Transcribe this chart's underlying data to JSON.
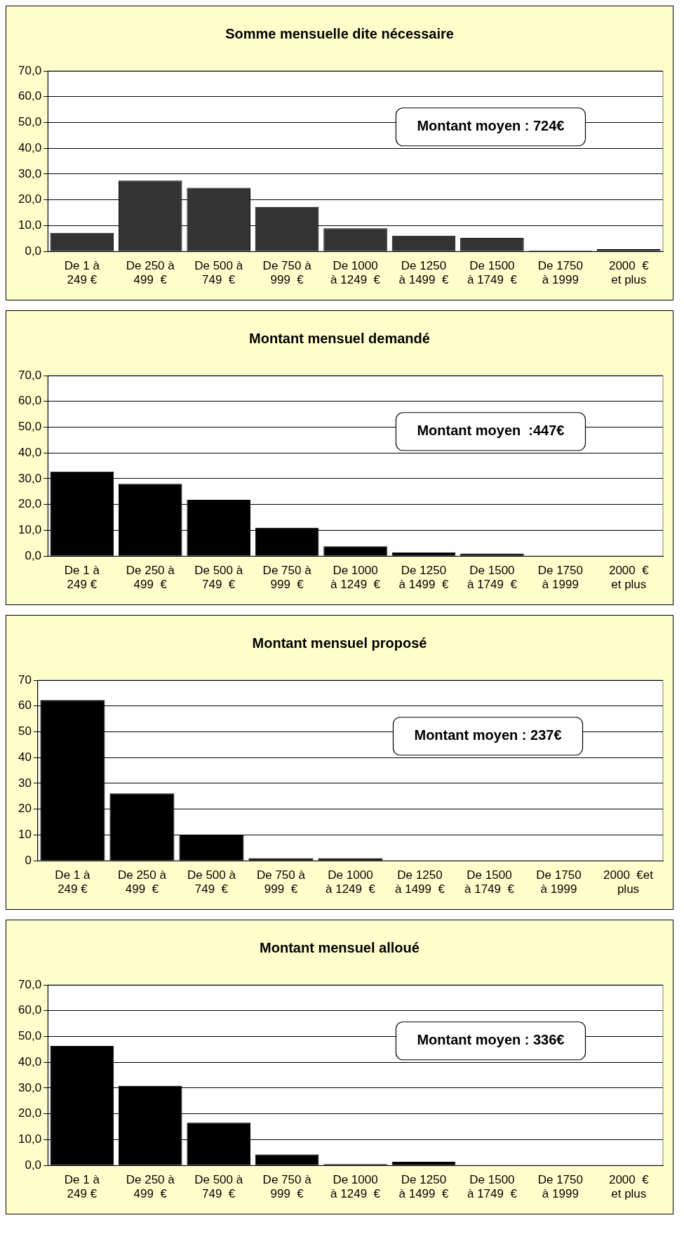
{
  "chart_data": [
    {
      "type": "bar",
      "title": "Somme mensuelle dite nécessaire",
      "categories": [
        "De 1 à\n249 €",
        "De 250 à\n499  €",
        "De 500 à\n749  €",
        "De 750 à\n999  €",
        "De 1000\nà 1249  €",
        "De 1250\nà 1499  €",
        "De 1500\nà 1749  €",
        "De 1750\nà 1999",
        "2000  €\net plus"
      ],
      "values": [
        7.2,
        27.5,
        24.7,
        17.3,
        9.0,
        6.1,
        5.2,
        0.4,
        0.9
      ],
      "color": "#333333",
      "ylim": [
        0,
        70
      ],
      "yticks": [
        {
          "value": 0,
          "label": "0,0"
        },
        {
          "value": 10,
          "label": "10,0"
        },
        {
          "value": 20,
          "label": "20,0"
        },
        {
          "value": 30,
          "label": "30,0"
        },
        {
          "value": 40,
          "label": "40,0"
        },
        {
          "value": 50,
          "label": "50,0"
        },
        {
          "value": 60,
          "label": "60,0"
        },
        {
          "value": 70,
          "label": "70,0"
        }
      ],
      "grid": "y",
      "annotations": [
        "Montant moyen : 724€"
      ]
    },
    {
      "type": "bar",
      "title": "Montant mensuel demandé",
      "categories": [
        "De 1 à\n249 €",
        "De 250 à\n499  €",
        "De 500 à\n749  €",
        "De 750 à\n999  €",
        "De 1000\nà 1249  €",
        "De 1250\nà 1499  €",
        "De 1500\nà 1749  €",
        "De 1750\nà 1999",
        "2000  €\net plus"
      ],
      "values": [
        32.8,
        28.0,
        21.8,
        11.0,
        3.8,
        1.5,
        1.0,
        0,
        0
      ],
      "color": "#000000",
      "ylim": [
        0,
        70
      ],
      "yticks": [
        {
          "value": 0,
          "label": "0,0"
        },
        {
          "value": 10,
          "label": "10,0"
        },
        {
          "value": 20,
          "label": "20,0"
        },
        {
          "value": 30,
          "label": "30,0"
        },
        {
          "value": 40,
          "label": "40,0"
        },
        {
          "value": 50,
          "label": "50,0"
        },
        {
          "value": 60,
          "label": "60,0"
        },
        {
          "value": 70,
          "label": "70,0"
        }
      ],
      "grid": "y",
      "annotations": [
        "Montant moyen  :447€"
      ]
    },
    {
      "type": "bar",
      "title": "Montant mensuel proposé",
      "categories": [
        "De 1 à\n249 €",
        "De 250 à\n499  €",
        "De 500 à\n749  €",
        "De 750 à\n999  €",
        "De 1000\nà 1249  €",
        "De 1250\nà 1499  €",
        "De 1500\nà 1749  €",
        "De 1750\nà 1999",
        "2000  €et\nplus"
      ],
      "values": [
        62.3,
        26.1,
        10.2,
        1.0,
        1.0,
        0,
        0,
        0,
        0
      ],
      "color": "#000000",
      "ylim": [
        0,
        70
      ],
      "yticks": [
        0,
        10,
        20,
        30,
        40,
        50,
        60,
        70
      ],
      "grid": "y",
      "annotations": [
        "Montant moyen : 237€"
      ]
    },
    {
      "type": "bar",
      "title": "Montant mensuel alloué",
      "categories": [
        "De 1 à\n249 €",
        "De 250 à\n499  €",
        "De 500 à\n749  €",
        "De 750 à\n999  €",
        "De 1000\nà 1249  €",
        "De 1250\nà 1499  €",
        "De 1500\nà 1749  €",
        "De 1750\nà 1999",
        "2000  €\net plus"
      ],
      "values": [
        46.3,
        30.9,
        16.6,
        4.3,
        0.5,
        1.4,
        0,
        0,
        0
      ],
      "color": "#000000",
      "ylim": [
        0,
        70
      ],
      "yticks": [
        {
          "value": 0,
          "label": "0,0"
        },
        {
          "value": 10,
          "label": "10,0"
        },
        {
          "value": 20,
          "label": "20,0"
        },
        {
          "value": 30,
          "label": "30,0"
        },
        {
          "value": 40,
          "label": "40,0"
        },
        {
          "value": 50,
          "label": "50,0"
        },
        {
          "value": 60,
          "label": "60,0"
        },
        {
          "value": 70,
          "label": "70,0"
        }
      ],
      "grid": "y",
      "annotations": [
        "Montant moyen : 336€"
      ]
    }
  ]
}
